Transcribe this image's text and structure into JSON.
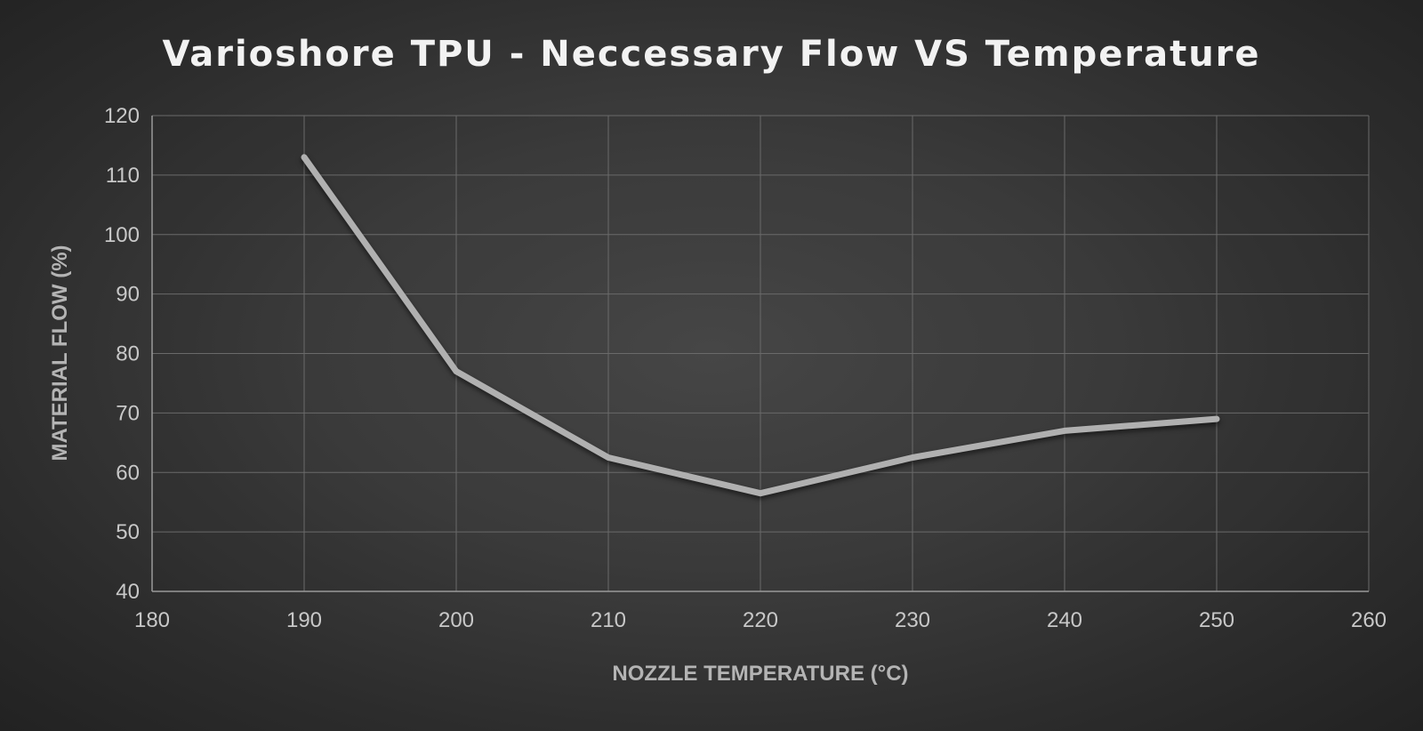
{
  "chart_data": {
    "type": "line",
    "title": "Varioshore TPU - Neccessary Flow VS Temperature",
    "xlabel": "NOZZLE TEMPERATURE (°C)",
    "ylabel": "MATERIAL FLOW (%)",
    "xlim": [
      180,
      260
    ],
    "ylim": [
      40,
      120
    ],
    "xticks": [
      180,
      190,
      200,
      210,
      220,
      230,
      240,
      250,
      260
    ],
    "yticks": [
      40,
      50,
      60,
      70,
      80,
      90,
      100,
      110,
      120
    ],
    "grid": true,
    "legend": "none",
    "series": [
      {
        "x": [
          190,
          200,
          210,
          220,
          230,
          240,
          250
        ],
        "y": [
          113,
          77,
          62.5,
          56.5,
          62.5,
          67,
          69
        ],
        "color": "#b0b0b0"
      }
    ]
  }
}
